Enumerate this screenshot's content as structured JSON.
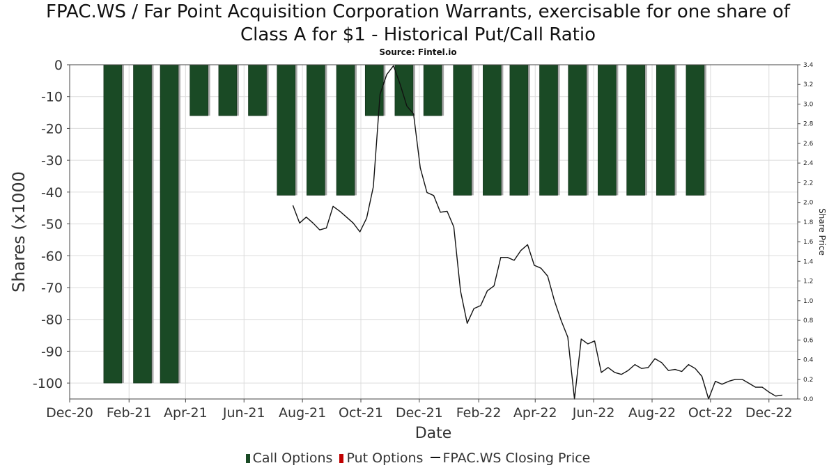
{
  "chart_data": {
    "type": "bar",
    "title_line1": "FPAC.WS / Far Point Acquisition Corporation Warrants, exercisable for one share of",
    "title_line2": "Class A for $1 - Historical Put/Call Ratio",
    "subtitle": "Source: Fintel.io",
    "xlabel": "Date",
    "ylabel": "Shares (x1000",
    "y2label": "Share Price",
    "x_range": [
      "2020-12-01",
      "2022-12-31"
    ],
    "ylim": [
      -105,
      0
    ],
    "y2lim": [
      0,
      3.4
    ],
    "x_ticks": [
      {
        "label": "Dec-20",
        "date": "2020-12-01"
      },
      {
        "label": "Feb-21",
        "date": "2021-02-01"
      },
      {
        "label": "Apr-21",
        "date": "2021-04-01"
      },
      {
        "label": "Jun-21",
        "date": "2021-06-01"
      },
      {
        "label": "Aug-21",
        "date": "2021-08-01"
      },
      {
        "label": "Oct-21",
        "date": "2021-10-01"
      },
      {
        "label": "Dec-21",
        "date": "2021-12-01"
      },
      {
        "label": "Feb-22",
        "date": "2022-02-01"
      },
      {
        "label": "Apr-22",
        "date": "2022-04-01"
      },
      {
        "label": "Jun-22",
        "date": "2022-06-01"
      },
      {
        "label": "Aug-22",
        "date": "2022-08-01"
      },
      {
        "label": "Oct-22",
        "date": "2022-10-01"
      },
      {
        "label": "Dec-22",
        "date": "2022-12-01"
      }
    ],
    "y_ticks": [
      0,
      -10,
      -20,
      -30,
      -40,
      -50,
      -60,
      -70,
      -80,
      -90,
      -100
    ],
    "y2_ticks": [
      "3.4",
      "3.2",
      "3.0",
      "2.8",
      "2.6",
      "2.4",
      "2.2",
      "2.0",
      "1.8",
      "1.6",
      "1.4",
      "1.2",
      "1.0",
      "0.8",
      "0.6",
      "0.4",
      "0.2",
      "0.0"
    ],
    "grid": true,
    "legend_position": "bottom",
    "colors": {
      "call": "#1a4a25",
      "put": "#c00000",
      "price": "#111111"
    },
    "series": [
      {
        "name": "Call Options",
        "bars": [
          {
            "date": "2021-01-15",
            "value": -100
          },
          {
            "date": "2021-02-15",
            "value": -100
          },
          {
            "date": "2021-03-15",
            "value": -100
          },
          {
            "date": "2021-04-15",
            "value": -16
          },
          {
            "date": "2021-05-15",
            "value": -16
          },
          {
            "date": "2021-06-15",
            "value": -16
          },
          {
            "date": "2021-07-15",
            "value": -41
          },
          {
            "date": "2021-08-15",
            "value": -41
          },
          {
            "date": "2021-09-15",
            "value": -41
          },
          {
            "date": "2021-10-15",
            "value": -16
          },
          {
            "date": "2021-11-15",
            "value": -16
          },
          {
            "date": "2021-12-15",
            "value": -16
          },
          {
            "date": "2022-01-15",
            "value": -41
          },
          {
            "date": "2022-02-15",
            "value": -41
          },
          {
            "date": "2022-03-15",
            "value": -41
          },
          {
            "date": "2022-04-15",
            "value": -41
          },
          {
            "date": "2022-05-15",
            "value": -41
          },
          {
            "date": "2022-06-15",
            "value": -41
          },
          {
            "date": "2022-07-15",
            "value": -41
          },
          {
            "date": "2022-08-15",
            "value": -41
          },
          {
            "date": "2022-09-15",
            "value": -41
          }
        ]
      },
      {
        "name": "Put Options",
        "bars": []
      },
      {
        "name": "FPAC.WS Closing Price",
        "points": [
          [
            "2021-07-22",
            1.97
          ],
          [
            "2021-07-29",
            1.79
          ],
          [
            "2021-08-05",
            1.85
          ],
          [
            "2021-08-12",
            1.79
          ],
          [
            "2021-08-19",
            1.72
          ],
          [
            "2021-08-26",
            1.74
          ],
          [
            "2021-09-02",
            1.96
          ],
          [
            "2021-09-09",
            1.91
          ],
          [
            "2021-09-16",
            1.85
          ],
          [
            "2021-09-23",
            1.79
          ],
          [
            "2021-09-30",
            1.7
          ],
          [
            "2021-10-07",
            1.84
          ],
          [
            "2021-10-14",
            2.16
          ],
          [
            "2021-10-21",
            3.1
          ],
          [
            "2021-10-28",
            3.3
          ],
          [
            "2021-11-04",
            3.39
          ],
          [
            "2021-11-11",
            3.2
          ],
          [
            "2021-11-18",
            2.98
          ],
          [
            "2021-11-25",
            2.9
          ],
          [
            "2021-12-02",
            2.35
          ],
          [
            "2021-12-09",
            2.1
          ],
          [
            "2021-12-16",
            2.07
          ],
          [
            "2021-12-23",
            1.9
          ],
          [
            "2021-12-30",
            1.91
          ],
          [
            "2022-01-06",
            1.75
          ],
          [
            "2022-01-13",
            1.1
          ],
          [
            "2022-01-20",
            0.77
          ],
          [
            "2022-01-27",
            0.92
          ],
          [
            "2022-02-03",
            0.95
          ],
          [
            "2022-02-10",
            1.1
          ],
          [
            "2022-02-17",
            1.15
          ],
          [
            "2022-02-24",
            1.44
          ],
          [
            "2022-03-03",
            1.44
          ],
          [
            "2022-03-10",
            1.41
          ],
          [
            "2022-03-17",
            1.51
          ],
          [
            "2022-03-24",
            1.57
          ],
          [
            "2022-03-31",
            1.36
          ],
          [
            "2022-04-07",
            1.33
          ],
          [
            "2022-04-14",
            1.25
          ],
          [
            "2022-04-21",
            1.0
          ],
          [
            "2022-04-28",
            0.8
          ],
          [
            "2022-05-05",
            0.63
          ],
          [
            "2022-05-12",
            0.0
          ],
          [
            "2022-05-19",
            0.61
          ],
          [
            "2022-05-26",
            0.56
          ],
          [
            "2022-06-02",
            0.59
          ],
          [
            "2022-06-09",
            0.27
          ],
          [
            "2022-06-16",
            0.32
          ],
          [
            "2022-06-23",
            0.27
          ],
          [
            "2022-06-30",
            0.25
          ],
          [
            "2022-07-07",
            0.29
          ],
          [
            "2022-07-14",
            0.35
          ],
          [
            "2022-07-21",
            0.31
          ],
          [
            "2022-07-28",
            0.32
          ],
          [
            "2022-08-04",
            0.41
          ],
          [
            "2022-08-11",
            0.37
          ],
          [
            "2022-08-18",
            0.29
          ],
          [
            "2022-08-25",
            0.3
          ],
          [
            "2022-09-01",
            0.28
          ],
          [
            "2022-09-08",
            0.35
          ],
          [
            "2022-09-15",
            0.31
          ],
          [
            "2022-09-22",
            0.23
          ],
          [
            "2022-09-29",
            0.0
          ],
          [
            "2022-10-06",
            0.18
          ],
          [
            "2022-10-13",
            0.15
          ],
          [
            "2022-10-20",
            0.18
          ],
          [
            "2022-10-27",
            0.2
          ],
          [
            "2022-11-03",
            0.2
          ],
          [
            "2022-11-10",
            0.16
          ],
          [
            "2022-11-17",
            0.12
          ],
          [
            "2022-11-24",
            0.12
          ],
          [
            "2022-12-01",
            0.07
          ],
          [
            "2022-12-08",
            0.03
          ],
          [
            "2022-12-15",
            0.04
          ]
        ]
      }
    ]
  }
}
